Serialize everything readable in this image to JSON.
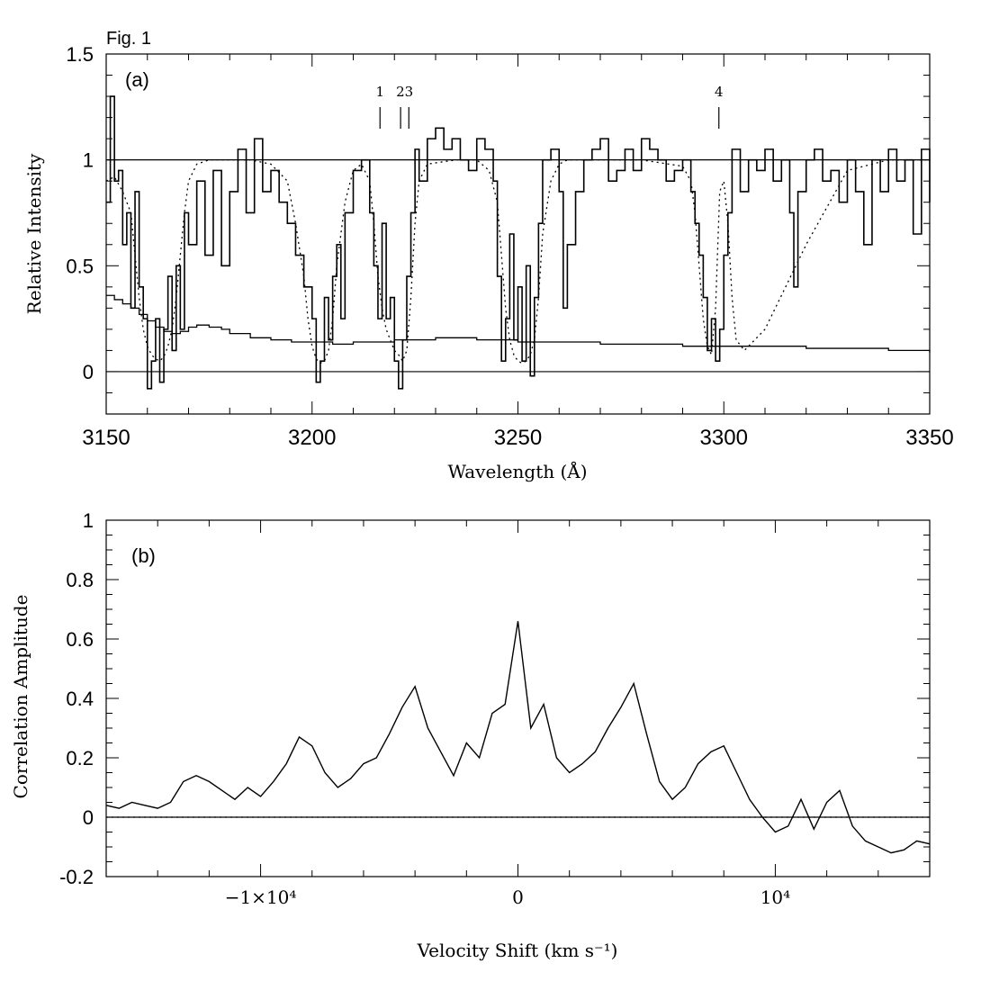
{
  "figure_label": "Fig. 1",
  "chart_data": [
    {
      "type": "line",
      "panel_label": "(a)",
      "xlabel": "Wavelength (Å)",
      "ylabel": "Relative Intensity",
      "xlim": [
        3150,
        3350
      ],
      "ylim": [
        -0.2,
        1.5
      ],
      "x_ticks": [
        3150,
        3200,
        3250,
        3300,
        3350
      ],
      "x_tick_labels": [
        "3150",
        "3200",
        "3250",
        "3300",
        "3350"
      ],
      "y_ticks": [
        0,
        0.5,
        1,
        1.5
      ],
      "y_tick_labels": [
        "0",
        "0.5",
        "1",
        "1.5"
      ],
      "reference_lines": [
        0,
        1
      ],
      "line_markers": [
        {
          "label": "1",
          "x": 3216.5
        },
        {
          "label": "2",
          "x": 3221.5
        },
        {
          "label": "3",
          "x": 3223.5
        },
        {
          "label": "4",
          "x": 3298.8
        }
      ],
      "marker_label_groups": [
        {
          "text": "1",
          "x": 3216.5
        },
        {
          "text": "23",
          "x": 3222.5
        },
        {
          "text": "4",
          "x": 3298.8
        }
      ],
      "series": [
        {
          "name": "observed spectrum",
          "style": "step",
          "x": [
            3150,
            3151,
            3152,
            3153,
            3154,
            3155,
            3156,
            3157,
            3158,
            3159,
            3160,
            3161,
            3162,
            3163,
            3164,
            3165,
            3166,
            3167,
            3168,
            3169,
            3170,
            3172,
            3174,
            3176,
            3178,
            3180,
            3182,
            3184,
            3186,
            3188,
            3190,
            3192,
            3194,
            3196,
            3198,
            3200,
            3201,
            3202,
            3203,
            3204,
            3205,
            3206,
            3207,
            3208,
            3210,
            3212,
            3214,
            3215,
            3216,
            3217,
            3218,
            3219,
            3220,
            3221,
            3222,
            3223,
            3224,
            3225,
            3226,
            3228,
            3230,
            3232,
            3234,
            3236,
            3238,
            3240,
            3242,
            3244,
            3245,
            3246,
            3247,
            3248,
            3249,
            3250,
            3251,
            3252,
            3253,
            3254,
            3255,
            3256,
            3258,
            3260,
            3261,
            3262,
            3264,
            3266,
            3268,
            3270,
            3272,
            3274,
            3276,
            3278,
            3280,
            3282,
            3284,
            3286,
            3288,
            3290,
            3292,
            3293,
            3294,
            3295,
            3296,
            3297,
            3298,
            3299,
            3300,
            3301,
            3302,
            3304,
            3306,
            3308,
            3310,
            3312,
            3314,
            3316,
            3317,
            3318,
            3320,
            3322,
            3324,
            3326,
            3328,
            3330,
            3332,
            3334,
            3336,
            3338,
            3340,
            3342,
            3344,
            3346,
            3348,
            3350
          ],
          "y": [
            0.8,
            1.3,
            0.9,
            0.95,
            0.6,
            0.75,
            0.3,
            0.85,
            0.4,
            0.25,
            -0.08,
            0.05,
            0.25,
            -0.05,
            0.2,
            0.45,
            0.1,
            0.5,
            0.2,
            0.75,
            0.6,
            0.9,
            0.55,
            0.95,
            0.5,
            0.85,
            1.05,
            0.75,
            1.1,
            0.85,
            0.95,
            0.8,
            0.7,
            0.55,
            0.4,
            0.25,
            -0.05,
            0.05,
            0.35,
            0.15,
            0.45,
            0.6,
            0.25,
            0.75,
            0.95,
            1.0,
            0.75,
            0.5,
            0.25,
            0.7,
            0.25,
            0.35,
            0.05,
            -0.08,
            0.15,
            0.45,
            0.75,
            1.05,
            0.9,
            1.1,
            1.15,
            1.05,
            1.1,
            1.0,
            0.95,
            1.1,
            1.05,
            0.9,
            0.45,
            0.05,
            0.25,
            0.65,
            0.15,
            0.4,
            0.05,
            0.5,
            -0.02,
            0.35,
            0.7,
            1.0,
            1.05,
            0.85,
            0.3,
            0.6,
            0.85,
            1.0,
            1.05,
            1.1,
            0.9,
            0.95,
            1.05,
            0.95,
            1.1,
            1.05,
            1.0,
            0.9,
            0.95,
            1.0,
            0.85,
            0.7,
            0.55,
            0.35,
            0.1,
            0.25,
            0.05,
            0.2,
            0.55,
            0.75,
            1.05,
            0.85,
            1.0,
            0.95,
            1.05,
            0.9,
            1.0,
            0.75,
            0.4,
            0.85,
            1.0,
            1.05,
            0.9,
            0.95,
            0.8,
            1.0,
            0.85,
            0.6,
            1.0,
            0.85,
            1.05,
            0.9,
            1.0,
            0.65,
            1.05,
            0.8
          ]
        },
        {
          "name": "model profile",
          "style": "dotted",
          "x": [
            3150,
            3152,
            3154,
            3156,
            3157,
            3158,
            3159,
            3160,
            3161,
            3162,
            3163,
            3164,
            3165,
            3166,
            3167,
            3168,
            3169,
            3170,
            3172,
            3175,
            3180,
            3185,
            3190,
            3194,
            3196,
            3198,
            3199,
            3200,
            3201,
            3202,
            3203,
            3204,
            3205,
            3206,
            3208,
            3210,
            3212,
            3214,
            3215,
            3216,
            3217,
            3218,
            3219,
            3220,
            3221,
            3222,
            3223,
            3224,
            3225,
            3226,
            3228,
            3235,
            3240,
            3243,
            3245,
            3246,
            3247,
            3248,
            3249,
            3250,
            3251,
            3252,
            3253,
            3254,
            3255,
            3256,
            3258,
            3260,
            3262,
            3265,
            3270,
            3280,
            3290,
            3292,
            3293,
            3294,
            3295,
            3296,
            3297,
            3298,
            3299,
            3300,
            3301,
            3302,
            3303,
            3305,
            3310,
            3320,
            3330,
            3340,
            3350
          ],
          "y": [
            0.9,
            0.92,
            0.85,
            0.75,
            0.55,
            0.35,
            0.2,
            0.12,
            0.08,
            0.06,
            0.05,
            0.07,
            0.12,
            0.2,
            0.35,
            0.55,
            0.75,
            0.9,
            0.98,
            1.0,
            1.0,
            1.0,
            0.98,
            0.9,
            0.7,
            0.45,
            0.25,
            0.12,
            0.06,
            0.04,
            0.05,
            0.1,
            0.25,
            0.5,
            0.8,
            0.95,
            0.98,
            0.9,
            0.7,
            0.45,
            0.3,
            0.2,
            0.15,
            0.1,
            0.08,
            0.05,
            0.1,
            0.35,
            0.7,
            0.9,
            0.98,
            1.0,
            1.0,
            0.95,
            0.8,
            0.55,
            0.3,
            0.15,
            0.08,
            0.05,
            0.04,
            0.05,
            0.08,
            0.15,
            0.35,
            0.65,
            0.9,
            0.98,
            1.0,
            1.0,
            1.0,
            1.0,
            0.97,
            0.9,
            0.75,
            0.5,
            0.25,
            0.12,
            0.08,
            0.3,
            0.85,
            0.9,
            0.7,
            0.35,
            0.15,
            0.1,
            0.2,
            0.6,
            0.95,
            1.0,
            1.0
          ]
        },
        {
          "name": "error spectrum",
          "style": "step-fine",
          "x": [
            3150,
            3152,
            3154,
            3156,
            3158,
            3160,
            3162,
            3164,
            3166,
            3168,
            3170,
            3172,
            3175,
            3178,
            3180,
            3185,
            3190,
            3195,
            3200,
            3205,
            3210,
            3220,
            3230,
            3240,
            3250,
            3260,
            3270,
            3280,
            3290,
            3300,
            3310,
            3320,
            3330,
            3340,
            3350
          ],
          "y": [
            0.36,
            0.34,
            0.32,
            0.3,
            0.27,
            0.24,
            0.21,
            0.19,
            0.18,
            0.19,
            0.21,
            0.22,
            0.21,
            0.2,
            0.18,
            0.16,
            0.15,
            0.14,
            0.14,
            0.13,
            0.14,
            0.15,
            0.16,
            0.15,
            0.14,
            0.14,
            0.13,
            0.13,
            0.12,
            0.12,
            0.12,
            0.11,
            0.11,
            0.1,
            0.09
          ]
        }
      ]
    },
    {
      "type": "line",
      "panel_label": "(b)",
      "xlabel": "Velocity Shift (km s⁻¹)",
      "ylabel": "Correlation Amplitude",
      "xlim": [
        -16000,
        16000
      ],
      "ylim": [
        -0.2,
        1.0
      ],
      "x_ticks": [
        -10000,
        0,
        10000
      ],
      "x_tick_labels": [
        "−1×10⁴",
        "0",
        "10⁴"
      ],
      "y_ticks": [
        -0.2,
        0,
        0.2,
        0.4,
        0.6,
        0.8,
        1
      ],
      "y_tick_labels": [
        "-0.2",
        "0",
        "0.2",
        "0.4",
        "0.6",
        "0.8",
        "1"
      ],
      "reference_lines": [
        0
      ],
      "series": [
        {
          "name": "cross-correlation",
          "style": "line",
          "x": [
            -16000,
            -15500,
            -15000,
            -14500,
            -14000,
            -13500,
            -13000,
            -12500,
            -12000,
            -11500,
            -11000,
            -10500,
            -10000,
            -9500,
            -9000,
            -8500,
            -8000,
            -7500,
            -7000,
            -6500,
            -6000,
            -5500,
            -5000,
            -4500,
            -4000,
            -3500,
            -3000,
            -2500,
            -2000,
            -1500,
            -1000,
            -500,
            0,
            500,
            1000,
            1500,
            2000,
            2500,
            3000,
            3500,
            4000,
            4500,
            5000,
            5500,
            6000,
            6500,
            7000,
            7500,
            8000,
            8500,
            9000,
            9500,
            10000,
            10500,
            11000,
            11500,
            12000,
            12500,
            13000,
            13500,
            14000,
            14500,
            15000,
            15500,
            16000
          ],
          "y": [
            0.04,
            0.03,
            0.05,
            0.04,
            0.03,
            0.05,
            0.12,
            0.14,
            0.12,
            0.09,
            0.06,
            0.1,
            0.07,
            0.12,
            0.18,
            0.27,
            0.24,
            0.15,
            0.1,
            0.13,
            0.18,
            0.2,
            0.28,
            0.37,
            0.44,
            0.3,
            0.22,
            0.14,
            0.25,
            0.2,
            0.35,
            0.38,
            0.66,
            0.3,
            0.38,
            0.2,
            0.15,
            0.18,
            0.22,
            0.3,
            0.37,
            0.45,
            0.28,
            0.12,
            0.06,
            0.1,
            0.18,
            0.22,
            0.24,
            0.15,
            0.06,
            0.0,
            -0.05,
            -0.03,
            0.06,
            -0.04,
            0.05,
            0.09,
            -0.03,
            -0.08,
            -0.1,
            -0.12,
            -0.11,
            -0.08,
            -0.09
          ]
        },
        {
          "name": "zero level",
          "style": "dotted",
          "x": [
            -16000,
            16000
          ],
          "y": [
            0,
            0
          ]
        }
      ]
    }
  ]
}
